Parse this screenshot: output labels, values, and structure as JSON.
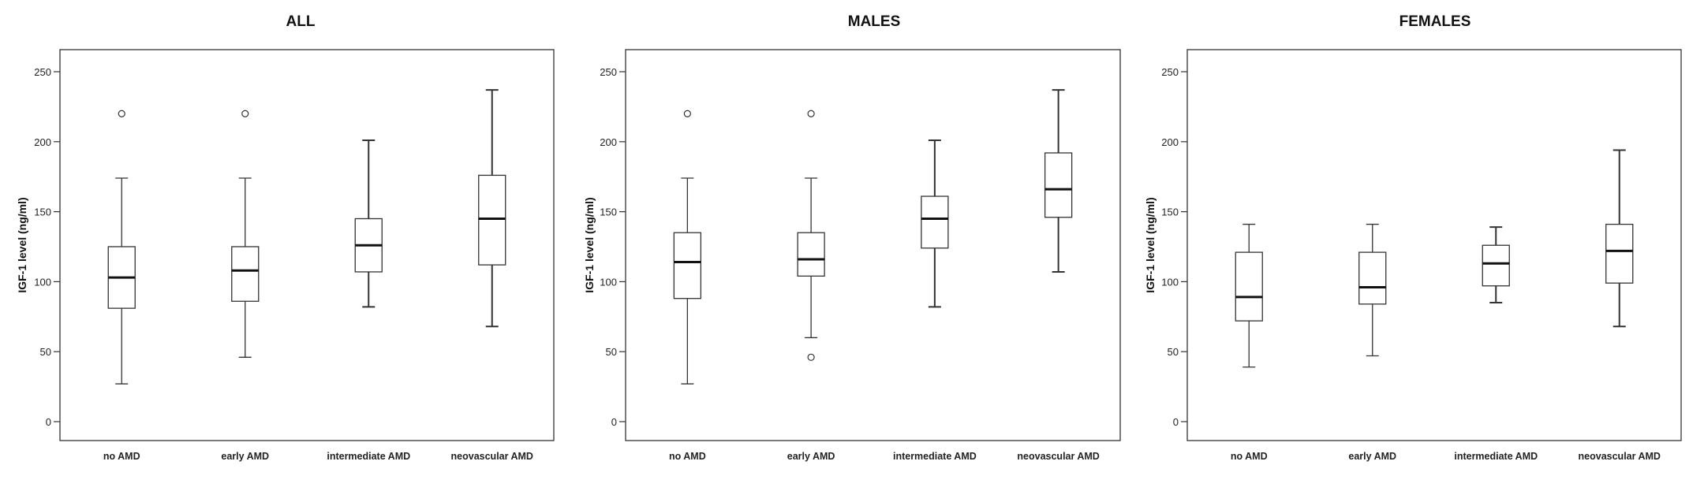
{
  "chart_data": [
    {
      "type": "boxplot",
      "title": "ALL",
      "ylabel": "IGF-1 level (ng/ml)",
      "xlabel": "",
      "ylim": [
        0,
        250
      ],
      "yticks": [
        0,
        50,
        100,
        150,
        200,
        250
      ],
      "categories": [
        "no AMD",
        "early AMD",
        "intermediate AMD",
        "neovascular AMD"
      ],
      "boxes": [
        {
          "whisker_low": 27,
          "q1": 81,
          "median": 103,
          "q3": 125,
          "whisker_high": 174,
          "outliers": [
            220
          ]
        },
        {
          "whisker_low": 46,
          "q1": 86,
          "median": 108,
          "q3": 125,
          "whisker_high": 174,
          "outliers": [
            220
          ]
        },
        {
          "whisker_low": 82,
          "q1": 107,
          "median": 126,
          "q3": 145,
          "whisker_high": 201,
          "outliers": []
        },
        {
          "whisker_low": 68,
          "q1": 112,
          "median": 145,
          "q3": 176,
          "whisker_high": 237,
          "outliers": []
        }
      ]
    },
    {
      "type": "boxplot",
      "title": "MALES",
      "ylabel": "IGF-1 level (ng/ml)",
      "xlabel": "",
      "ylim": [
        0,
        250
      ],
      "yticks": [
        0,
        50,
        100,
        150,
        200,
        250
      ],
      "categories": [
        "no AMD",
        "early AMD",
        "intermediate AMD",
        "neovascular AMD"
      ],
      "boxes": [
        {
          "whisker_low": 27,
          "q1": 88,
          "median": 114,
          "q3": 135,
          "whisker_high": 174,
          "outliers": [
            220
          ]
        },
        {
          "whisker_low": 60,
          "q1": 104,
          "median": 116,
          "q3": 135,
          "whisker_high": 174,
          "outliers": [
            220,
            46
          ]
        },
        {
          "whisker_low": 82,
          "q1": 124,
          "median": 145,
          "q3": 161,
          "whisker_high": 201,
          "outliers": []
        },
        {
          "whisker_low": 107,
          "q1": 146,
          "median": 166,
          "q3": 192,
          "whisker_high": 237,
          "outliers": []
        }
      ]
    },
    {
      "type": "boxplot",
      "title": "FEMALES",
      "ylabel": "IGF-1 level (ng/ml)",
      "xlabel": "",
      "ylim": [
        0,
        250
      ],
      "yticks": [
        0,
        50,
        100,
        150,
        200,
        250
      ],
      "categories": [
        "no AMD",
        "early AMD",
        "intermediate AMD",
        "neovascular AMD"
      ],
      "boxes": [
        {
          "whisker_low": 39,
          "q1": 72,
          "median": 89,
          "q3": 121,
          "whisker_high": 141,
          "outliers": []
        },
        {
          "whisker_low": 47,
          "q1": 84,
          "median": 96,
          "q3": 121,
          "whisker_high": 141,
          "outliers": []
        },
        {
          "whisker_low": 85,
          "q1": 97,
          "median": 113,
          "q3": 126,
          "whisker_high": 139,
          "outliers": []
        },
        {
          "whisker_low": 68,
          "q1": 99,
          "median": 122,
          "q3": 141,
          "whisker_high": 194,
          "outliers": []
        }
      ]
    }
  ]
}
